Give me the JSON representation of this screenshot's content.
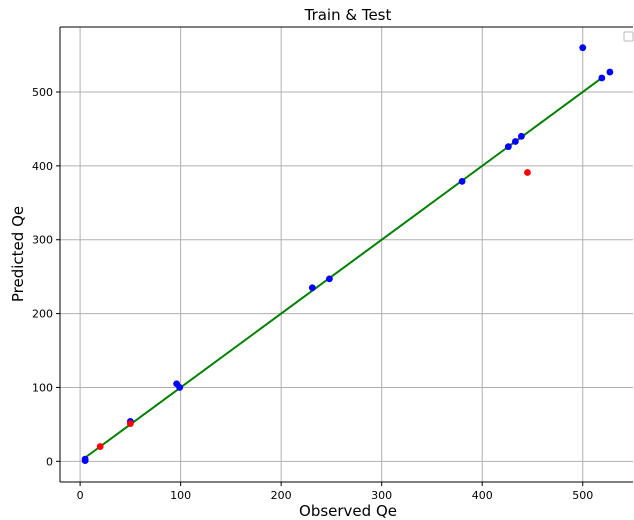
{
  "chart_data": {
    "type": "scatter",
    "title": "Train & Test",
    "xlabel": "Observed Qe",
    "ylabel": "Predicted Qe",
    "xlim": [
      -20,
      550
    ],
    "ylim": [
      -28,
      588
    ],
    "xticks": [
      0,
      100,
      200,
      300,
      400,
      500
    ],
    "yticks": [
      0,
      100,
      200,
      300,
      400,
      500
    ],
    "grid": true,
    "legend": "top-right, empty",
    "series": [
      {
        "color": "#0000ff",
        "points": [
          {
            "x": 5,
            "y": 3
          },
          {
            "x": 5,
            "y": 1
          },
          {
            "x": 50,
            "y": 54
          },
          {
            "x": 96,
            "y": 105
          },
          {
            "x": 99,
            "y": 100
          },
          {
            "x": 231,
            "y": 235
          },
          {
            "x": 248,
            "y": 247
          },
          {
            "x": 380,
            "y": 379
          },
          {
            "x": 426,
            "y": 426
          },
          {
            "x": 433,
            "y": 433
          },
          {
            "x": 439,
            "y": 440
          },
          {
            "x": 500,
            "y": 560
          },
          {
            "x": 519,
            "y": 519
          },
          {
            "x": 527,
            "y": 527
          }
        ]
      },
      {
        "color": "#ff0000",
        "points": [
          {
            "x": 20,
            "y": 20
          },
          {
            "x": 50,
            "y": 51
          },
          {
            "x": 445,
            "y": 391
          }
        ]
      }
    ],
    "fit_line": {
      "color": "#008000",
      "x": [
        5,
        521
      ],
      "y": [
        5,
        521
      ]
    }
  }
}
